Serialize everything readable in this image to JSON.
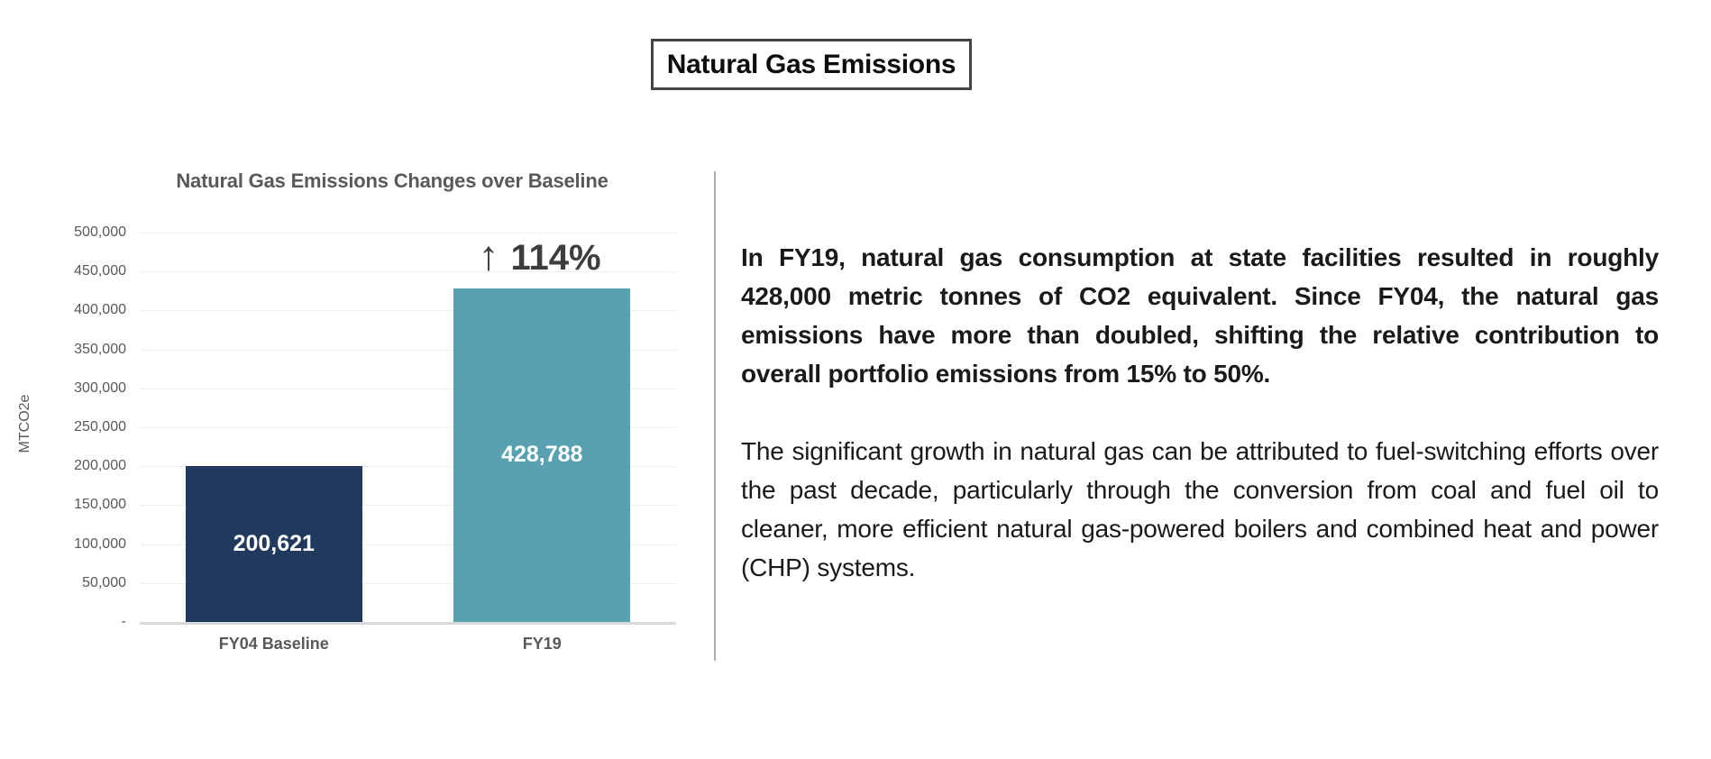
{
  "page_title": "Natural Gas Emissions",
  "chart_data": {
    "type": "bar",
    "title": "Natural Gas Emissions Changes over Baseline",
    "ylabel": "MTCO2e",
    "xlabel": "",
    "categories": [
      "FY04 Baseline",
      "FY19"
    ],
    "values": [
      200621,
      428788
    ],
    "bar_labels": [
      "200,621",
      "428,788"
    ],
    "bar_colors": [
      "#22395e",
      "#58a1b1"
    ],
    "ylim": [
      0,
      500000
    ],
    "ytick_step": 50000,
    "ytick_labels": [
      "-",
      "50,000",
      "100,000",
      "150,000",
      "200,000",
      "250,000",
      "300,000",
      "350,000",
      "400,000",
      "450,000",
      "500,000"
    ],
    "grid": true,
    "legend": false,
    "annotation": {
      "arrow": "↑",
      "value": "114%",
      "bar_index": 1
    }
  },
  "summary": {
    "paragraph1": "In FY19, natural gas consumption at state facilities resulted in roughly 428,000 metric tonnes of CO2 equivalent. Since FY04, the natural gas emissions have more than doubled, shifting the relative contribution to overall portfolio emissions from 15% to 50%.",
    "paragraph2": "The significant growth in natural gas can be attributed to fuel-switching efforts over the past decade, particularly through the conversion from coal and fuel oil to cleaner, more efficient natural gas-powered boilers and combined heat and power (CHP) systems."
  }
}
